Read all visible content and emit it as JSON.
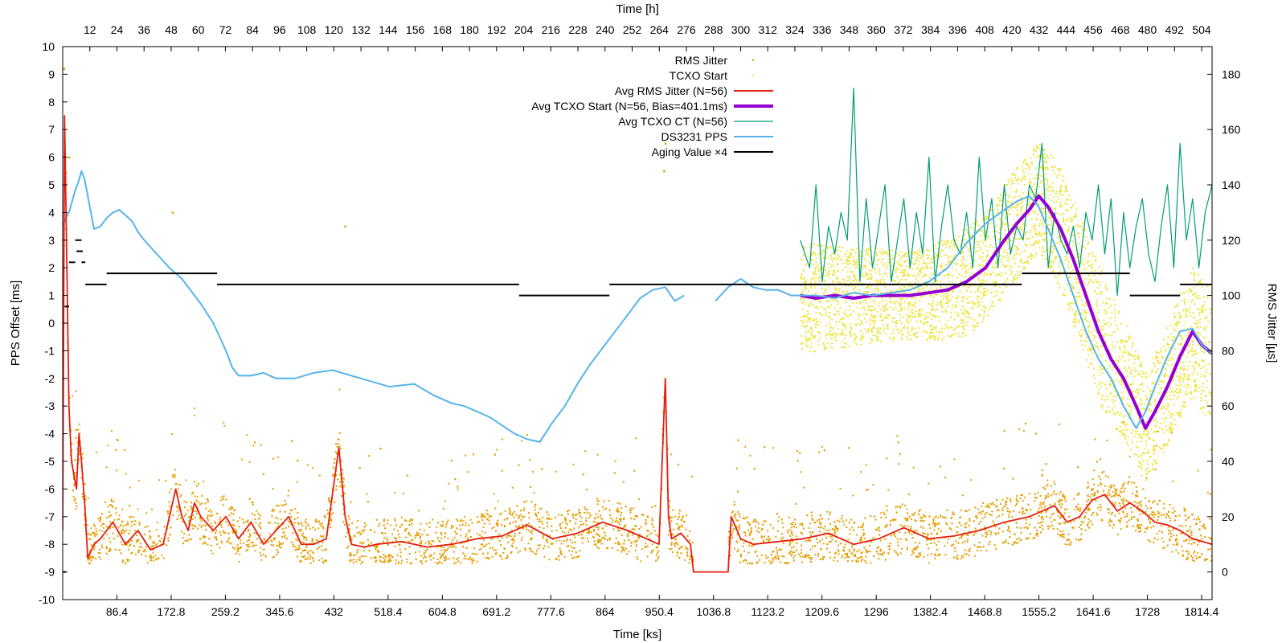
{
  "chart_data": {
    "type": "line",
    "xlabel_bottom": "Time [ks]",
    "xlabel_top": "Time [h]",
    "ylabel_left": "PPS Offset [ms]",
    "ylabel_right": "RMS Jitter [µs]",
    "xlim_ks": [
      0,
      1831
    ],
    "ylim_left": [
      -10,
      10
    ],
    "ylim_right": [
      -10,
      190
    ],
    "x_ticks_bottom": [
      "86.4",
      "172.8",
      "259.2",
      "345.6",
      "432",
      "518.4",
      "604.8",
      "691.2",
      "777.6",
      "864",
      "950.4",
      "1036.8",
      "1123.2",
      "1209.6",
      "1296",
      "1382.4",
      "1468.8",
      "1555.2",
      "1641.6",
      "1728",
      "1814.4"
    ],
    "x_ticks_top": [
      "12",
      "24",
      "36",
      "48",
      "60",
      "72",
      "84",
      "96",
      "108",
      "120",
      "132",
      "144",
      "156",
      "168",
      "180",
      "192",
      "204",
      "216",
      "228",
      "240",
      "252",
      "264",
      "276",
      "288",
      "300",
      "312",
      "324",
      "336",
      "348",
      "360",
      "372",
      "384",
      "396",
      "408",
      "420",
      "432",
      "444",
      "456",
      "468",
      "480",
      "492",
      "504"
    ],
    "y_ticks_left": [
      "10",
      "9",
      "8",
      "7",
      "6",
      "5",
      "4",
      "3",
      "2",
      "1",
      "0",
      "-1",
      "-2",
      "-3",
      "-4",
      "-5",
      "-6",
      "-7",
      "-8",
      "-9",
      "-10"
    ],
    "y_ticks_right": [
      "180",
      "160",
      "140",
      "120",
      "100",
      "80",
      "60",
      "40",
      "20",
      "0"
    ],
    "legend_position": "top-center",
    "legend": [
      {
        "name": "RMS Jitter",
        "style": "dots",
        "color": "#e69f00"
      },
      {
        "name": "TCXO Start",
        "style": "dots",
        "color": "#f0e442"
      },
      {
        "name": "Avg RMS Jitter (N=56)",
        "style": "line",
        "color": "#e51e10"
      },
      {
        "name": "Avg TCXO Start (N=56, Bias=401.1ms)",
        "style": "thick-line",
        "color": "#9400d3"
      },
      {
        "name": "Avg TCXO CT (N=56)",
        "style": "line",
        "color": "#009e73"
      },
      {
        "name": "DS3231 PPS",
        "style": "line",
        "color": "#56b4e9"
      },
      {
        "name": "Aging Value ×4",
        "style": "line",
        "color": "#000000"
      }
    ],
    "series": [
      {
        "name": "DS3231 PPS",
        "axis": "left",
        "x": [
          0,
          5,
          10,
          15,
          20,
          25,
          30,
          35,
          40,
          50,
          60,
          70,
          80,
          90,
          100,
          110,
          120,
          130,
          150,
          170,
          190,
          200,
          210,
          220,
          240,
          260,
          270,
          280,
          300,
          320,
          340,
          370,
          400,
          430,
          460,
          490,
          520,
          560,
          590,
          620,
          640,
          660,
          680,
          700,
          720,
          740,
          760,
          780,
          800,
          820,
          840,
          860,
          880,
          900,
          920,
          940,
          960,
          975,
          990,
          1005,
          1020,
          1040,
          1060,
          1080,
          1100,
          1120,
          1140,
          1160,
          1180,
          1200,
          1230,
          1260,
          1290,
          1320,
          1350,
          1380,
          1410,
          1440,
          1470,
          1500,
          1520,
          1540,
          1555,
          1570,
          1590,
          1610,
          1630,
          1650,
          1670,
          1690,
          1710,
          1725,
          1740,
          1760,
          1780,
          1800,
          1815,
          1831
        ],
        "y": [
          3.5,
          3.8,
          4.0,
          4.4,
          4.8,
          5.1,
          5.5,
          5.2,
          4.6,
          3.4,
          3.5,
          3.8,
          4.0,
          4.1,
          3.9,
          3.7,
          3.3,
          3.0,
          2.5,
          2.0,
          1.6,
          1.3,
          1.0,
          0.7,
          0.0,
          -1.0,
          -1.6,
          -1.9,
          -1.9,
          -1.8,
          -2.0,
          -2.0,
          -1.8,
          -1.7,
          -1.9,
          -2.1,
          -2.3,
          -2.2,
          -2.6,
          -2.9,
          -3.0,
          -3.2,
          -3.4,
          -3.7,
          -4.0,
          -4.2,
          -4.3,
          -3.6,
          -3.0,
          -2.2,
          -1.5,
          -0.9,
          -0.3,
          0.3,
          0.9,
          1.2,
          1.3,
          0.8,
          1.0,
          null,
          null,
          0.8,
          1.3,
          1.6,
          1.3,
          1.2,
          1.2,
          1.0,
          1.0,
          1.0,
          0.9,
          1.1,
          1.0,
          1.1,
          1.2,
          1.5,
          2.0,
          2.9,
          3.6,
          4.1,
          4.4,
          4.6,
          4.2,
          3.4,
          2.3,
          1.0,
          -0.3,
          -1.3,
          -2.0,
          -3.0,
          -3.8,
          -3.2,
          -2.3,
          -1.2,
          -0.3,
          -0.2,
          -0.8,
          -1.1
        ]
      },
      {
        "name": "Avg RMS Jitter (N=56)",
        "axis": "right",
        "x": [
          0,
          3,
          6,
          10,
          14,
          18,
          22,
          26,
          30,
          35,
          40,
          50,
          60,
          80,
          100,
          120,
          140,
          160,
          180,
          190,
          200,
          210,
          220,
          240,
          260,
          280,
          300,
          320,
          340,
          360,
          380,
          400,
          420,
          440,
          450,
          460,
          480,
          500,
          540,
          580,
          620,
          660,
          700,
          740,
          780,
          820,
          860,
          900,
          930,
          950,
          960,
          965,
          970,
          985,
          1000,
          1005,
          1020,
          1040,
          1050,
          1060,
          1065,
          1080,
          1100,
          1140,
          1180,
          1220,
          1260,
          1300,
          1340,
          1380,
          1420,
          1460,
          1500,
          1540,
          1560,
          1580,
          1600,
          1620,
          1640,
          1660,
          1680,
          1700,
          1720,
          1740,
          1760,
          1780,
          1800,
          1831
        ],
        "y": [
          15,
          165,
          120,
          60,
          40,
          35,
          30,
          50,
          40,
          25,
          5,
          10,
          12,
          18,
          10,
          15,
          8,
          10,
          30,
          20,
          15,
          25,
          20,
          15,
          20,
          12,
          18,
          10,
          15,
          20,
          10,
          10,
          12,
          45,
          20,
          10,
          9,
          10,
          11,
          9,
          10,
          12,
          13,
          17,
          12,
          14,
          18,
          15,
          12,
          10,
          70,
          20,
          12,
          14,
          10,
          0,
          0,
          0,
          0,
          0,
          20,
          12,
          10,
          11,
          12,
          14,
          10,
          12,
          16,
          12,
          13,
          15,
          18,
          20,
          22,
          24,
          18,
          20,
          26,
          28,
          22,
          25,
          22,
          18,
          17,
          15,
          12,
          10
        ]
      },
      {
        "name": "Avg TCXO Start (N=56, Bias=401.1ms)",
        "axis": "left",
        "x": [
          1175,
          1200,
          1230,
          1260,
          1290,
          1320,
          1350,
          1380,
          1410,
          1440,
          1470,
          1500,
          1520,
          1540,
          1555,
          1570,
          1590,
          1610,
          1630,
          1650,
          1670,
          1690,
          1710,
          1725,
          1740,
          1760,
          1780,
          1800,
          1815,
          1831
        ],
        "y": [
          1.0,
          0.9,
          1.0,
          0.9,
          1.0,
          1.0,
          1.0,
          1.1,
          1.2,
          1.5,
          2.0,
          3.0,
          3.6,
          4.1,
          4.6,
          4.2,
          3.4,
          2.3,
          1.0,
          -0.3,
          -1.3,
          -2.0,
          -3.0,
          -3.8,
          -3.2,
          -2.3,
          -1.2,
          -0.3,
          -0.8,
          -1.1
        ]
      },
      {
        "name": "Avg TCXO CT (N=56)",
        "axis": "right",
        "x": [
          1175,
          1190,
          1200,
          1210,
          1220,
          1230,
          1240,
          1250,
          1260,
          1270,
          1280,
          1290,
          1300,
          1310,
          1320,
          1330,
          1340,
          1350,
          1360,
          1370,
          1380,
          1390,
          1400,
          1410,
          1420,
          1430,
          1440,
          1450,
          1460,
          1470,
          1480,
          1490,
          1500,
          1510,
          1520,
          1530,
          1540,
          1550,
          1560,
          1570,
          1580,
          1590,
          1600,
          1610,
          1620,
          1630,
          1640,
          1650,
          1660,
          1670,
          1680,
          1690,
          1700,
          1710,
          1720,
          1730,
          1740,
          1750,
          1760,
          1770,
          1780,
          1790,
          1800,
          1810,
          1820,
          1831
        ],
        "y": [
          120,
          110,
          140,
          105,
          125,
          115,
          130,
          120,
          175,
          105,
          135,
          110,
          125,
          140,
          105,
          120,
          135,
          110,
          130,
          115,
          150,
          105,
          125,
          140,
          120,
          115,
          130,
          110,
          150,
          120,
          135,
          110,
          140,
          115,
          125,
          120,
          140,
          135,
          155,
          110,
          130,
          120,
          115,
          125,
          110,
          130,
          120,
          140,
          115,
          135,
          100,
          130,
          110,
          125,
          135,
          115,
          105,
          125,
          140,
          110,
          155,
          120,
          135,
          110,
          130,
          140
        ]
      },
      {
        "name": "Aging Value ×4",
        "axis": "left",
        "segments": [
          {
            "x": [
              0,
              5
            ],
            "y": [
              -9.0,
              -9.0
            ]
          },
          {
            "x": [
              3,
              10
            ],
            "y": [
              0.6,
              0.6
            ]
          },
          {
            "x": [
              10,
              20
            ],
            "y": [
              2.2,
              2.2
            ]
          },
          {
            "x": [
              20,
              30
            ],
            "y": [
              3.0,
              3.0
            ]
          },
          {
            "x": [
              22,
              32
            ],
            "y": [
              2.6,
              2.6
            ]
          },
          {
            "x": [
              30,
              36
            ],
            "y": [
              2.2,
              2.2
            ]
          },
          {
            "x": [
              36,
              70
            ],
            "y": [
              1.4,
              1.4
            ]
          },
          {
            "x": [
              70,
              246
            ],
            "y": [
              1.8,
              1.8
            ]
          },
          {
            "x": [
              246,
              727
            ],
            "y": [
              1.4,
              1.4
            ]
          },
          {
            "x": [
              727,
              871
            ],
            "y": [
              1.0,
              1.0
            ]
          },
          {
            "x": [
              871,
              1528
            ],
            "y": [
              1.4,
              1.4
            ]
          },
          {
            "x": [
              1528,
              1700
            ],
            "y": [
              1.8,
              1.8
            ]
          },
          {
            "x": [
              1700,
              1780
            ],
            "y": [
              1.0,
              1.0
            ]
          },
          {
            "x": [
              1780,
              1831
            ],
            "y": [
              1.4,
              1.4
            ]
          }
        ]
      },
      {
        "name": "RMS Jitter",
        "axis": "right",
        "note_band": "scatter band around Avg RMS Jitter with spikes",
        "band_spikes": [
          [
            2,
            182
          ],
          [
            10,
            150
          ],
          [
            175,
            130
          ],
          [
            450,
            125
          ],
          [
            960,
            155
          ],
          [
            958,
            145
          ],
          [
            1560,
            35
          ],
          [
            1640,
            30
          ]
        ]
      },
      {
        "name": "TCXO Start",
        "axis": "left",
        "band_center_series": "Avg TCXO Start (N=56, Bias=401.1ms)",
        "band_halfwidth_ms": [
          [
            1175,
            2.0
          ],
          [
            1350,
            1.6
          ],
          [
            1450,
            2.0
          ],
          [
            1555,
            2.0
          ],
          [
            1650,
            2.5
          ],
          [
            1725,
            2.0
          ],
          [
            1831,
            2.5
          ]
        ]
      }
    ]
  }
}
